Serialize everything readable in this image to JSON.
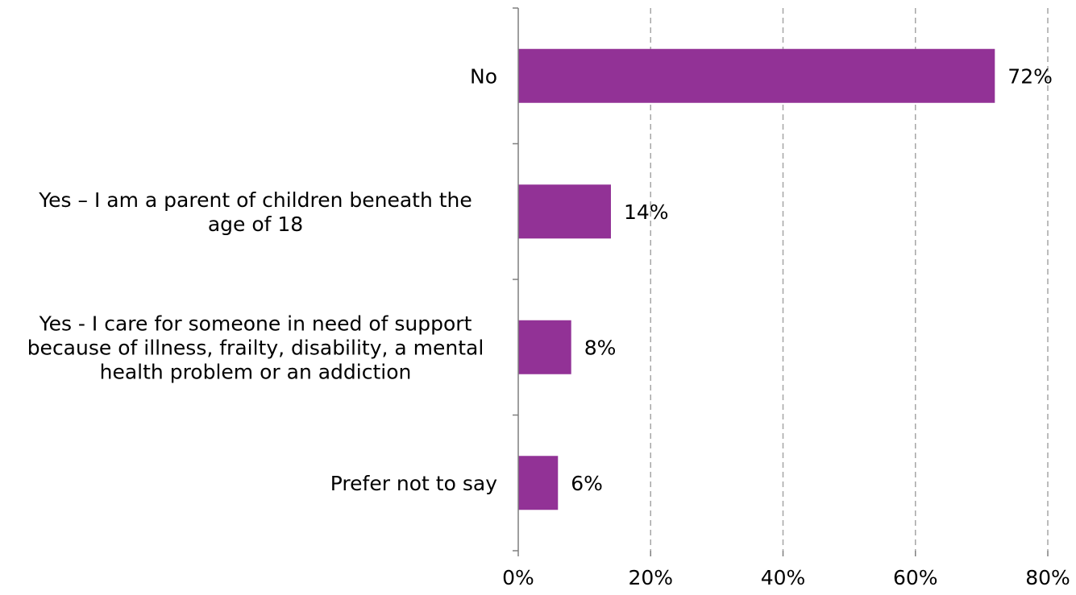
{
  "chart_data": {
    "type": "bar",
    "orientation": "horizontal",
    "categories": [
      [
        "No"
      ],
      [
        "Yes – I am a parent of children beneath the",
        "age of 18"
      ],
      [
        "Yes -  I care for someone in need of support",
        "because of illness, frailty, disability, a mental",
        "health problem or an addiction"
      ],
      [
        "Prefer not to say"
      ]
    ],
    "values": [
      72,
      14,
      8,
      6
    ],
    "value_labels": [
      "72%",
      "14%",
      "8%",
      "6%"
    ],
    "xlim": [
      0,
      80
    ],
    "x_ticks": [
      0,
      20,
      40,
      60,
      80
    ],
    "x_tick_labels": [
      "0%",
      "20%",
      "40%",
      "60%",
      "80%"
    ],
    "grid": "vertical dashed",
    "legend": "none",
    "bar_color": "#923296",
    "axis_color": "#7f7f7f",
    "grid_color": "#a6a6a6"
  }
}
